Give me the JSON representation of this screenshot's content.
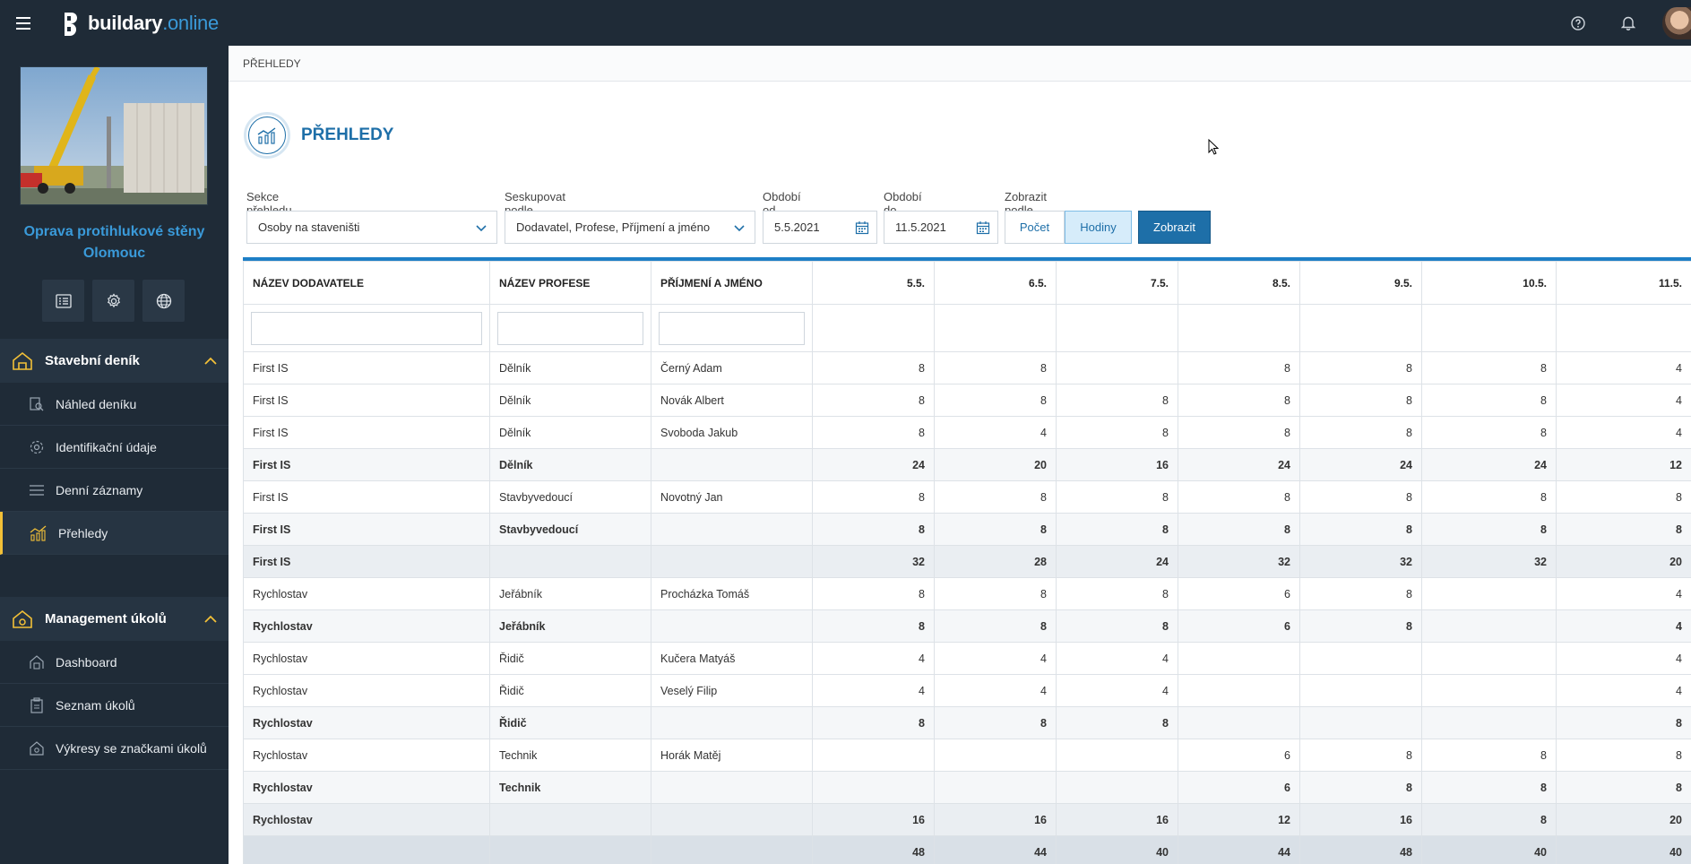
{
  "topbar": {
    "logo_main": "buildary",
    "logo_accent": ".online"
  },
  "sidebar": {
    "project_title_line1": "Oprava protihlukové stěny",
    "project_title_line2": "Olomouc",
    "sections": [
      {
        "label": "Stavební deník",
        "items": [
          {
            "label": "Náhled deníku",
            "icon": "book-search-icon"
          },
          {
            "label": "Identifikační údaje",
            "icon": "gear-icon"
          },
          {
            "label": "Denní záznamy",
            "icon": "list-icon"
          },
          {
            "label": "Přehledy",
            "icon": "chart-icon",
            "active": true
          }
        ]
      },
      {
        "label": "Management úkolů",
        "items": [
          {
            "label": "Dashboard",
            "icon": "dashboard-icon"
          },
          {
            "label": "Seznam úkolů",
            "icon": "clipboard-icon"
          },
          {
            "label": "Výkresy se značkami úkolů",
            "icon": "drawing-icon"
          }
        ]
      }
    ]
  },
  "breadcrumb": "PŘEHLEDY",
  "page_title": "PŘEHLEDY",
  "filters": {
    "section_label": "Sekce přehledu",
    "section_value": "Osoby na staveništi",
    "group_label": "Seskupovat podle",
    "group_value": "Dodavatel, Profese, Příjmení a jméno",
    "from_label": "Období od",
    "from_value": "5.5.2021",
    "to_label": "Období do",
    "to_value": "11.5.2021",
    "show_by_label": "Zobrazit podle",
    "toggle_count": "Počet",
    "toggle_hours": "Hodiny",
    "show_button": "Zobrazit"
  },
  "table": {
    "headers": [
      "NÁZEV DODAVATELE",
      "NÁZEV PROFESE",
      "PŘÍJMENÍ A JMÉNO",
      "5.5.",
      "6.5.",
      "7.5.",
      "8.5.",
      "9.5.",
      "10.5.",
      "11.5."
    ],
    "rows": [
      {
        "type": "row",
        "cells": [
          "First IS",
          "Dělník",
          "Černý Adam",
          "8",
          "8",
          "",
          "8",
          "8",
          "8",
          "4"
        ]
      },
      {
        "type": "row",
        "cells": [
          "First IS",
          "Dělník",
          "Novák Albert",
          "8",
          "8",
          "8",
          "8",
          "8",
          "8",
          "4"
        ]
      },
      {
        "type": "row",
        "cells": [
          "First IS",
          "Dělník",
          "Svoboda Jakub",
          "8",
          "4",
          "8",
          "8",
          "8",
          "8",
          "4"
        ]
      },
      {
        "type": "subtotal",
        "cells": [
          "First IS",
          "Dělník",
          "",
          "24",
          "20",
          "16",
          "24",
          "24",
          "24",
          "12"
        ]
      },
      {
        "type": "row",
        "cells": [
          "First IS",
          "Stavbyvedoucí",
          "Novotný Jan",
          "8",
          "8",
          "8",
          "8",
          "8",
          "8",
          "8"
        ]
      },
      {
        "type": "subtotal",
        "cells": [
          "First IS",
          "Stavbyvedoucí",
          "",
          "8",
          "8",
          "8",
          "8",
          "8",
          "8",
          "8"
        ]
      },
      {
        "type": "total",
        "cells": [
          "First IS",
          "",
          "",
          "32",
          "28",
          "24",
          "32",
          "32",
          "32",
          "20"
        ]
      },
      {
        "type": "row",
        "cells": [
          "Rychlostav",
          "Jeřábník",
          "Procházka Tomáš",
          "8",
          "8",
          "8",
          "6",
          "8",
          "",
          "4"
        ]
      },
      {
        "type": "subtotal",
        "cells": [
          "Rychlostav",
          "Jeřábník",
          "",
          "8",
          "8",
          "8",
          "6",
          "8",
          "",
          "4"
        ]
      },
      {
        "type": "row",
        "cells": [
          "Rychlostav",
          "Řidič",
          "Kučera Matyáš",
          "4",
          "4",
          "4",
          "",
          "",
          "",
          "4"
        ]
      },
      {
        "type": "row",
        "cells": [
          "Rychlostav",
          "Řidič",
          "Veselý Filip",
          "4",
          "4",
          "4",
          "",
          "",
          "",
          "4"
        ]
      },
      {
        "type": "subtotal",
        "cells": [
          "Rychlostav",
          "Řidič",
          "",
          "8",
          "8",
          "8",
          "",
          "",
          "",
          "8"
        ]
      },
      {
        "type": "row",
        "cells": [
          "Rychlostav",
          "Technik",
          "Horák Matěj",
          "",
          "",
          "",
          "6",
          "8",
          "8",
          "8"
        ]
      },
      {
        "type": "subtotal",
        "cells": [
          "Rychlostav",
          "Technik",
          "",
          "",
          "",
          "",
          "6",
          "8",
          "8",
          "8"
        ]
      },
      {
        "type": "total",
        "cells": [
          "Rychlostav",
          "",
          "",
          "16",
          "16",
          "16",
          "12",
          "16",
          "8",
          "20"
        ]
      },
      {
        "type": "grand",
        "cells": [
          "",
          "",
          "",
          "48",
          "44",
          "40",
          "44",
          "48",
          "40",
          "40"
        ]
      }
    ]
  }
}
